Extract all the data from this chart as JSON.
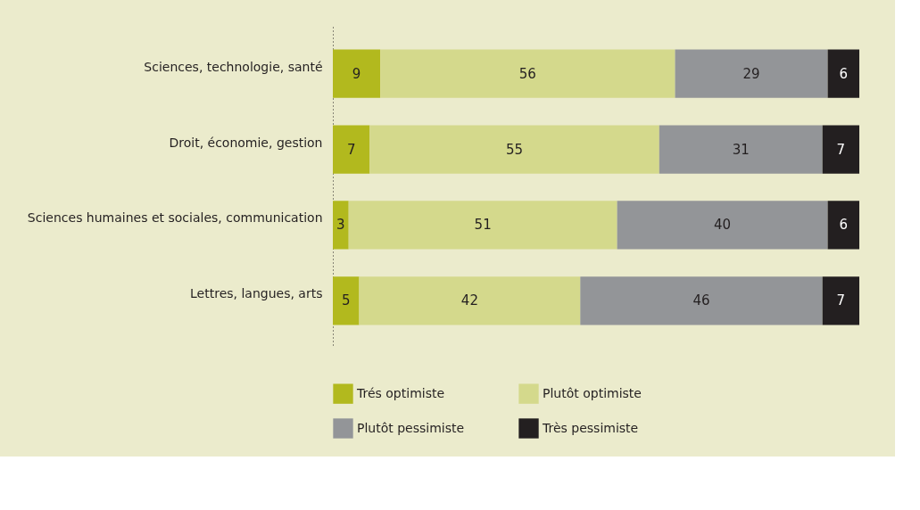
{
  "chart_data": {
    "type": "bar",
    "orientation": "horizontal",
    "stacked": true,
    "data_labels": true,
    "legend": "bottom",
    "grid": false,
    "categories": [
      "Sciences, technologie, santé",
      "Droit, économie, gestion",
      "Sciences humaines et sociales, communication",
      "Lettres, langues, arts"
    ],
    "series": [
      {
        "name": "Trés optimiste",
        "color": "#b2b91e",
        "values": [
          9,
          7,
          3,
          5
        ]
      },
      {
        "name": "Plutôt optimiste",
        "color": "#d4d98c",
        "values": [
          56,
          55,
          51,
          42
        ]
      },
      {
        "name": "Plutôt pessimiste",
        "color": "#939598",
        "values": [
          29,
          31,
          40,
          46
        ]
      },
      {
        "name": "Très pessimiste",
        "color": "#231f20",
        "values": [
          6,
          7,
          6,
          7
        ]
      }
    ]
  }
}
